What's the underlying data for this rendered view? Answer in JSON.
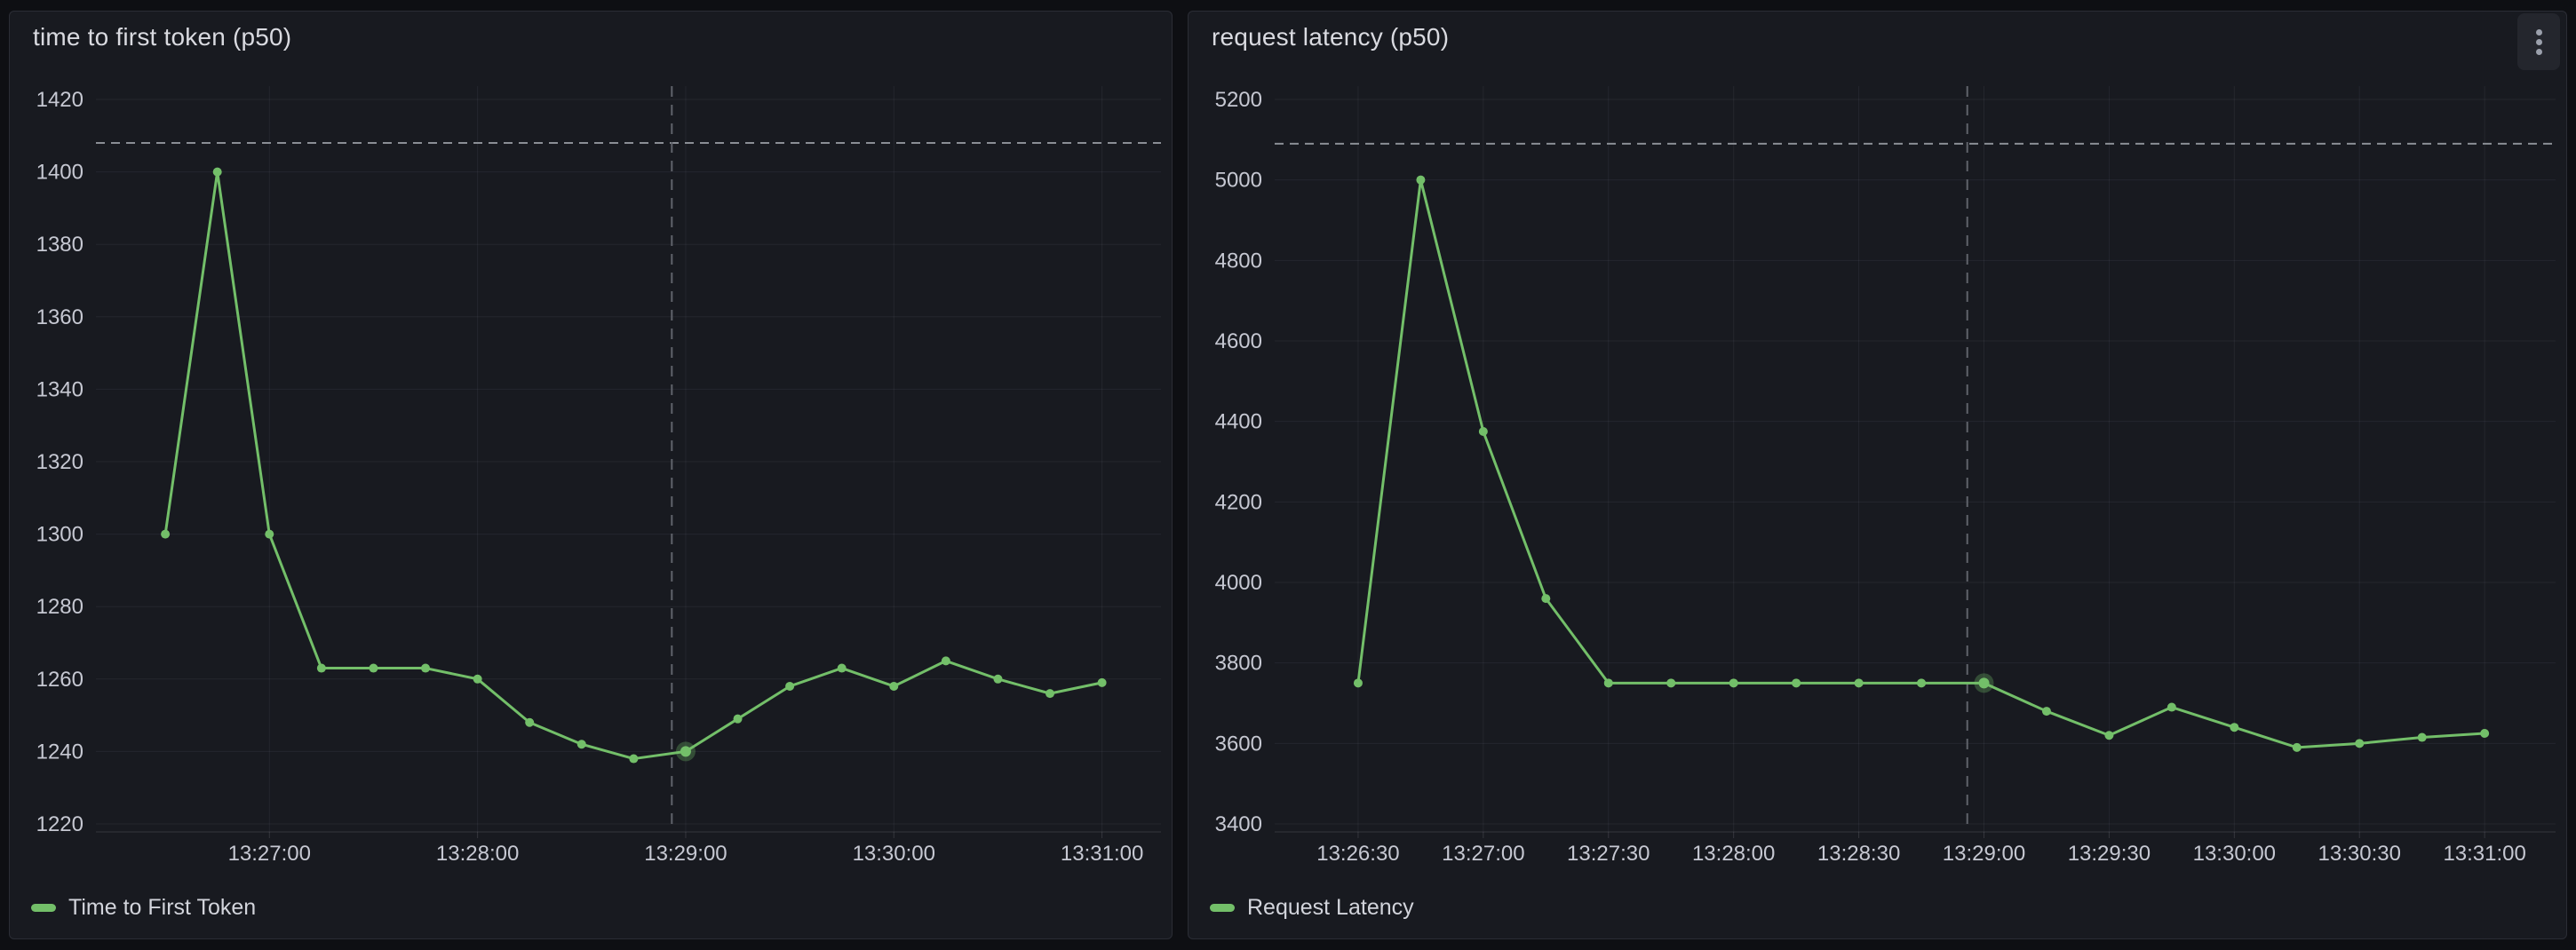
{
  "theme": {
    "canvas_bg": "#0e0f13",
    "panel_bg": "#181a20",
    "panel_border": "#2b2d35",
    "title_text": "#d9dae0",
    "axis_text": "#c6c8d2",
    "legend_text": "#d2d4db",
    "grid_color": "rgba(204,204,220,0.07)",
    "axis_line_color": "rgba(204,204,220,0.16)",
    "threshold_color": "#8a8e95",
    "crosshair_color": "#60636b",
    "series_green": "#73bf69",
    "menu_bg": "#24262d",
    "menu_dot": "#9ba0ac"
  },
  "panels": [
    {
      "menu_visible": false
    },
    {
      "menu_visible": true,
      "menu_icon": "kebab-menu-icon"
    }
  ],
  "chart_data": [
    {
      "type": "line",
      "title": "time to first token (p50)",
      "xlabel": "",
      "ylabel": "",
      "grid": true,
      "legend_position": "bottom-left",
      "x_window": [
        "13:26:10",
        "13:31:17"
      ],
      "ylim": [
        1220,
        1420
      ],
      "ytick_step": 20,
      "xticks": [
        "13:27:00",
        "13:28:00",
        "13:29:00",
        "13:30:00",
        "13:31:00"
      ],
      "threshold_line": 1408,
      "crosshair_time": "13:28:56",
      "highlight_time": "13:29:00",
      "x": [
        "13:26:30",
        "13:26:45",
        "13:27:00",
        "13:27:15",
        "13:27:30",
        "13:27:45",
        "13:28:00",
        "13:28:15",
        "13:28:30",
        "13:28:45",
        "13:29:00",
        "13:29:15",
        "13:29:30",
        "13:29:45",
        "13:30:00",
        "13:30:15",
        "13:30:30",
        "13:30:45",
        "13:31:00"
      ],
      "series": [
        {
          "name": "Time to First Token",
          "color": "#73bf69",
          "values": [
            1300,
            1400,
            1300,
            1263,
            1263,
            1263,
            1260,
            1248,
            1242,
            1238,
            1240,
            1249,
            1258,
            1263,
            1258,
            1265,
            1260,
            1256,
            1259
          ]
        }
      ]
    },
    {
      "type": "line",
      "title": "request latency (p50)",
      "xlabel": "",
      "ylabel": "",
      "grid": true,
      "legend_position": "bottom-left",
      "x_window": [
        "13:26:10",
        "13:31:17"
      ],
      "ylim": [
        3400,
        5200
      ],
      "ytick_step": 200,
      "xticks": [
        "13:26:30",
        "13:27:00",
        "13:27:30",
        "13:28:00",
        "13:28:30",
        "13:29:00",
        "13:29:30",
        "13:30:00",
        "13:30:30",
        "13:31:00"
      ],
      "threshold_line": 5090,
      "crosshair_time": "13:28:56",
      "highlight_time": "13:29:00",
      "x": [
        "13:26:30",
        "13:26:45",
        "13:27:00",
        "13:27:15",
        "13:27:30",
        "13:27:45",
        "13:28:00",
        "13:28:15",
        "13:28:30",
        "13:28:45",
        "13:29:00",
        "13:29:15",
        "13:29:30",
        "13:29:45",
        "13:30:00",
        "13:30:15",
        "13:30:30",
        "13:30:45",
        "13:31:00"
      ],
      "series": [
        {
          "name": "Request Latency",
          "color": "#73bf69",
          "values": [
            3750,
            5000,
            4375,
            3960,
            3750,
            3750,
            3750,
            3750,
            3750,
            3750,
            3750,
            3680,
            3620,
            3690,
            3640,
            3590,
            3600,
            3615,
            3625
          ]
        }
      ]
    }
  ]
}
